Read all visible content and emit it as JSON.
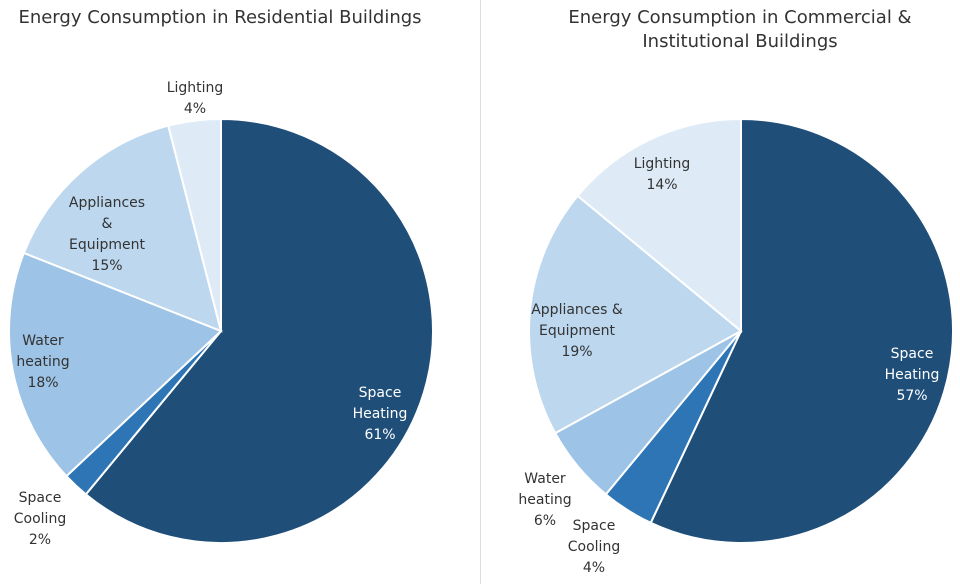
{
  "chart_data": [
    {
      "type": "pie",
      "title": "Energy Consumption in Residential Buildings",
      "categories": [
        "Space Heating",
        "Space Cooling",
        "Water heating",
        "Appliances & Equipment",
        "Lighting"
      ],
      "values": [
        61,
        2,
        18,
        15,
        4
      ],
      "labels": [
        [
          "Space",
          "Heating",
          "61%"
        ],
        [
          "Space",
          "Cooling",
          "2%"
        ],
        [
          "Water",
          "heating",
          "18%"
        ],
        [
          "Appliances",
          "&",
          "Equipment",
          "15%"
        ],
        [
          "Lighting",
          "4%"
        ]
      ],
      "colors": [
        "#1f4e79",
        "#2e75b6",
        "#9dc3e6",
        "#bdd7ee",
        "#deebf7"
      ]
    },
    {
      "type": "pie",
      "title": "Energy Consumption in Commercial & Institutional Buildings",
      "title_lines": [
        "Energy Consumption in Commercial &",
        "Institutional Buildings"
      ],
      "categories": [
        "Space Heating",
        "Space Cooling",
        "Water heating",
        "Appliances & Equipment",
        "Lighting"
      ],
      "values": [
        57,
        4,
        6,
        19,
        14
      ],
      "labels": [
        [
          "Space",
          "Heating",
          "57%"
        ],
        [
          "Space",
          "Cooling",
          "4%"
        ],
        [
          "Water",
          "heating",
          "6%"
        ],
        [
          "Appliances &",
          "Equipment",
          "19%"
        ],
        [
          "Lighting",
          "14%"
        ]
      ],
      "colors": [
        "#1f4e79",
        "#2e75b6",
        "#9dc3e6",
        "#bdd7ee",
        "#deebf7"
      ]
    }
  ]
}
